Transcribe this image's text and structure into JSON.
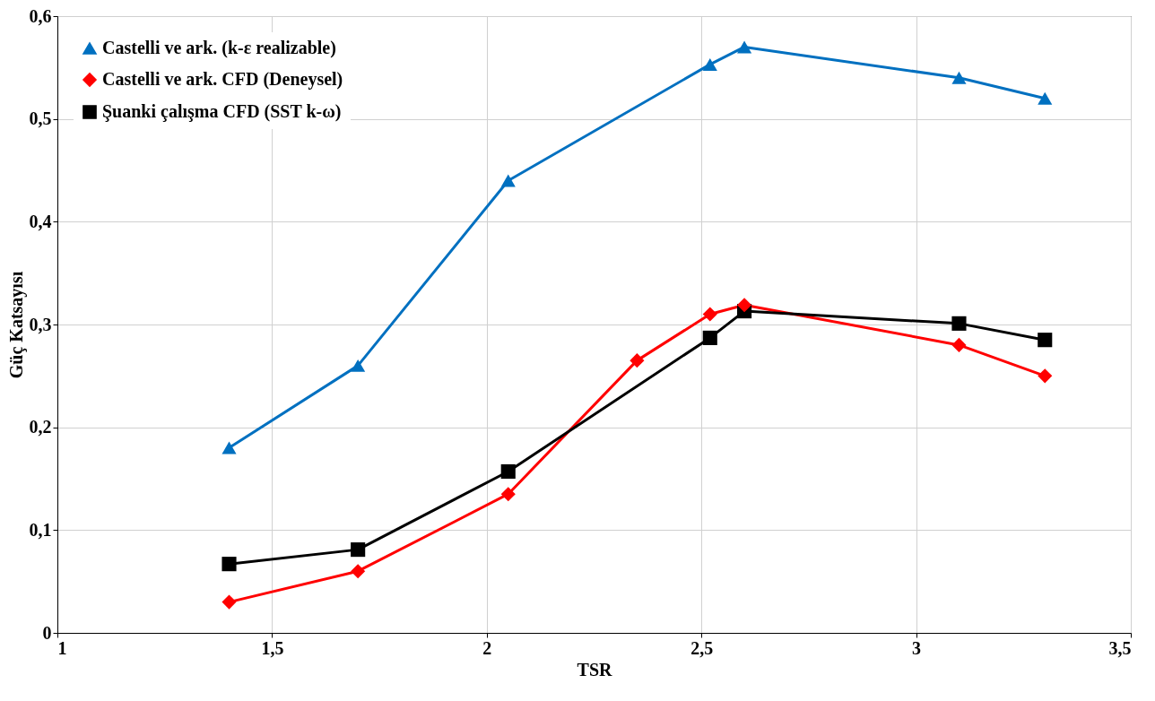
{
  "chart_data": {
    "type": "line",
    "xlabel": "TSR",
    "ylabel": "Güç Katsayısı",
    "xlim": [
      1,
      3.5
    ],
    "xticks": [
      1,
      {
        "value": 1.5,
        "label": "1,5"
      },
      2,
      {
        "value": 2.5,
        "label": "2,5"
      },
      3,
      {
        "value": 3.5,
        "label": "3,5"
      }
    ],
    "ylim": [
      0,
      0.6
    ],
    "yticks": [
      0,
      {
        "value": 0.1,
        "label": "0,1"
      },
      {
        "value": 0.2,
        "label": "0,2"
      },
      {
        "value": 0.3,
        "label": "0,3"
      },
      {
        "value": 0.4,
        "label": "0,4"
      },
      {
        "value": 0.5,
        "label": "0,5"
      },
      {
        "value": 0.6,
        "label": "0,6"
      }
    ],
    "grid": true,
    "legend": "top left",
    "line_style": "solid",
    "series": [
      {
        "name": "Castelli ve ark. (k-ε realizable)",
        "color": "#0070c0",
        "marker": "triangle",
        "x": [
          1.4,
          1.7,
          2.05,
          2.52,
          2.6,
          3.1,
          3.3
        ],
        "values": [
          0.18,
          0.26,
          0.44,
          0.553,
          0.57,
          0.54,
          0.52
        ]
      },
      {
        "name": "Castelli ve ark. CFD (Deneysel)",
        "color": "#ff0000",
        "marker": "diamond",
        "x": [
          1.4,
          1.7,
          2.05,
          2.35,
          2.52,
          2.6,
          3.1,
          3.3
        ],
        "values": [
          0.03,
          0.06,
          0.135,
          0.265,
          0.31,
          0.319,
          0.28,
          0.25
        ]
      },
      {
        "name": "Şuanki çalışma CFD (SST k-ω)",
        "color": "#000000",
        "marker": "square",
        "x": [
          1.4,
          1.7,
          2.05,
          2.52,
          2.6,
          3.1,
          3.3
        ],
        "values": [
          0.067,
          0.081,
          0.157,
          0.287,
          0.313,
          0.301,
          0.285
        ]
      }
    ]
  }
}
